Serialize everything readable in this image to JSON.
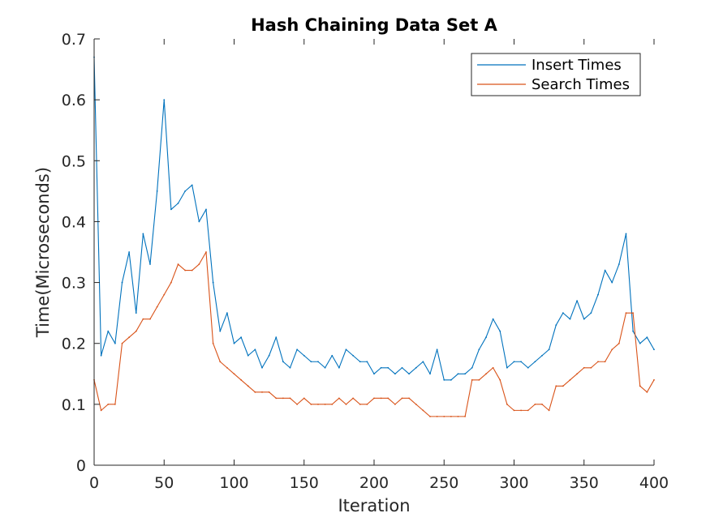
{
  "chart_data": {
    "type": "line",
    "title": "Hash Chaining Data Set A",
    "xlabel": "Iteration",
    "ylabel": "Time(Microseconds)",
    "xlim": [
      0,
      400
    ],
    "ylim": [
      0,
      0.7
    ],
    "xticks": [
      0,
      50,
      100,
      150,
      200,
      250,
      300,
      350,
      400
    ],
    "yticks": [
      0,
      0.1,
      0.2,
      0.3,
      0.4,
      0.5,
      0.6,
      0.7
    ],
    "xtick_labels": [
      "0",
      "50",
      "100",
      "150",
      "200",
      "250",
      "300",
      "350",
      "400"
    ],
    "ytick_labels": [
      "0",
      "0.1",
      "0.2",
      "0.3",
      "0.4",
      "0.5",
      "0.6",
      "0.7"
    ],
    "grid": false,
    "legend_position": "top-right",
    "x": [
      0,
      5,
      10,
      15,
      20,
      25,
      30,
      35,
      40,
      45,
      50,
      55,
      60,
      65,
      70,
      75,
      80,
      85,
      90,
      95,
      100,
      105,
      110,
      115,
      120,
      125,
      130,
      135,
      140,
      145,
      150,
      155,
      160,
      165,
      170,
      175,
      180,
      185,
      190,
      195,
      200,
      205,
      210,
      215,
      220,
      225,
      230,
      235,
      240,
      245,
      250,
      255,
      260,
      265,
      270,
      275,
      280,
      285,
      290,
      295,
      300,
      305,
      310,
      315,
      320,
      325,
      330,
      335,
      340,
      345,
      350,
      355,
      360,
      365,
      370,
      375,
      380,
      385,
      390,
      395,
      400
    ],
    "series": [
      {
        "name": "Insert Times",
        "color": "#0072BD",
        "values": [
          0.67,
          0.18,
          0.22,
          0.2,
          0.3,
          0.35,
          0.25,
          0.38,
          0.33,
          0.45,
          0.6,
          0.42,
          0.43,
          0.45,
          0.46,
          0.4,
          0.42,
          0.3,
          0.22,
          0.25,
          0.2,
          0.21,
          0.18,
          0.19,
          0.16,
          0.18,
          0.21,
          0.17,
          0.16,
          0.19,
          0.18,
          0.17,
          0.17,
          0.16,
          0.18,
          0.16,
          0.19,
          0.18,
          0.17,
          0.17,
          0.15,
          0.16,
          0.16,
          0.15,
          0.16,
          0.15,
          0.16,
          0.17,
          0.15,
          0.19,
          0.14,
          0.14,
          0.15,
          0.15,
          0.16,
          0.19,
          0.21,
          0.24,
          0.22,
          0.16,
          0.17,
          0.17,
          0.16,
          0.17,
          0.18,
          0.19,
          0.23,
          0.25,
          0.24,
          0.27,
          0.24,
          0.25,
          0.28,
          0.32,
          0.3,
          0.33,
          0.38,
          0.22,
          0.2,
          0.21,
          0.19
        ]
      },
      {
        "name": "Search Times",
        "color": "#D95319",
        "values": [
          0.14,
          0.09,
          0.1,
          0.1,
          0.2,
          0.21,
          0.22,
          0.24,
          0.24,
          0.26,
          0.28,
          0.3,
          0.33,
          0.32,
          0.32,
          0.33,
          0.35,
          0.2,
          0.17,
          0.16,
          0.15,
          0.14,
          0.13,
          0.12,
          0.12,
          0.12,
          0.11,
          0.11,
          0.11,
          0.1,
          0.11,
          0.1,
          0.1,
          0.1,
          0.1,
          0.11,
          0.1,
          0.11,
          0.1,
          0.1,
          0.11,
          0.11,
          0.11,
          0.1,
          0.11,
          0.11,
          0.1,
          0.09,
          0.08,
          0.08,
          0.08,
          0.08,
          0.08,
          0.08,
          0.14,
          0.14,
          0.15,
          0.16,
          0.14,
          0.1,
          0.09,
          0.09,
          0.09,
          0.1,
          0.1,
          0.09,
          0.13,
          0.13,
          0.14,
          0.15,
          0.16,
          0.16,
          0.17,
          0.17,
          0.19,
          0.2,
          0.25,
          0.25,
          0.13,
          0.12,
          0.14
        ]
      }
    ]
  }
}
